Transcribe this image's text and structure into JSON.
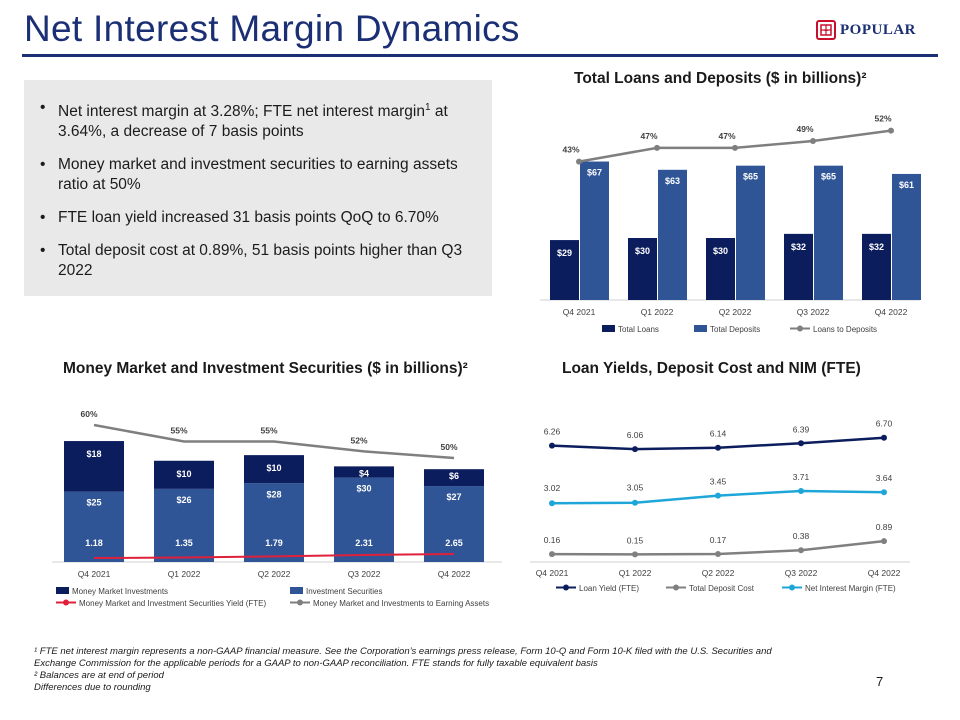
{
  "header": {
    "title": "Net Interest Margin Dynamics",
    "logo_text": "POPULAR",
    "logo_mark": "+"
  },
  "bullets": [
    {
      "pre": "Net interest margin at 3.28%; FTE net interest margin",
      "sup": "1",
      "post": " at 3.64%, a decrease of 7 basis points"
    },
    {
      "pre": "Money market and investment securities to earning assets ratio at 50%",
      "sup": "",
      "post": ""
    },
    {
      "pre": "FTE loan yield increased 31 basis points QoQ to 6.70%",
      "sup": "",
      "post": ""
    },
    {
      "pre": "Total deposit cost at 0.89%, 51 basis points higher than Q3 2022",
      "sup": "",
      "post": ""
    }
  ],
  "chart_data": [
    {
      "id": "loans_deposits",
      "type": "bar",
      "title": "Total Loans and Deposits ($ in billions)²",
      "categories": [
        "Q4 2021",
        "Q1 2022",
        "Q2 2022",
        "Q3 2022",
        "Q4 2022"
      ],
      "series": [
        {
          "name": "Total Loans",
          "values": [
            29,
            30,
            30,
            32,
            32
          ],
          "labels": [
            "$29",
            "$30",
            "$30",
            "$32",
            "$32"
          ],
          "color": "#0c1d5e"
        },
        {
          "name": "Total Deposits",
          "values": [
            67,
            63,
            65,
            65,
            61
          ],
          "labels": [
            "$67",
            "$63",
            "$65",
            "$65",
            "$61"
          ],
          "color": "#2f5597"
        }
      ],
      "line": {
        "name": "Loans to Deposits",
        "values": [
          43,
          47,
          47,
          49,
          52
        ],
        "labels": [
          "43%",
          "47%",
          "47%",
          "49%",
          "52%"
        ],
        "color": "#7f7f7f"
      },
      "ylim": [
        0,
        75
      ]
    },
    {
      "id": "mm_investments",
      "type": "bar",
      "stacked": true,
      "title": "Money Market and Investment Securities ($ in billions)²",
      "categories": [
        "Q4 2021",
        "Q1 2022",
        "Q2 2022",
        "Q3 2022",
        "Q4 2022"
      ],
      "series": [
        {
          "name": "Investment Securities",
          "values": [
            25,
            26,
            28,
            30,
            27
          ],
          "labels": [
            "$25",
            "$26",
            "$28",
            "$30",
            "$27"
          ],
          "color": "#2f5597"
        },
        {
          "name": "Money Market Investments",
          "values": [
            18,
            10,
            10,
            4,
            6
          ],
          "labels": [
            "$18",
            "$10",
            "$10",
            "$4",
            "$6"
          ],
          "color": "#0c1d5e"
        }
      ],
      "yield_line": {
        "name": "Money Market and Investment Securities Yield (FTE)",
        "values": [
          1.18,
          1.35,
          1.79,
          2.31,
          2.65
        ],
        "labels": [
          "1.18",
          "1.35",
          "1.79",
          "2.31",
          "2.65"
        ],
        "color": "#e0203a"
      },
      "ratio_line": {
        "name": "Money Market and Investments to Earning Assets",
        "values": [
          60,
          55,
          55,
          52,
          50
        ],
        "labels": [
          "60%",
          "55%",
          "55%",
          "52%",
          "50%"
        ],
        "color": "#7f7f7f"
      },
      "ylim": [
        0,
        48
      ]
    },
    {
      "id": "yields",
      "type": "line",
      "title": "Loan Yields, Deposit Cost and NIM (FTE)",
      "categories": [
        "Q4 2021",
        "Q1 2022",
        "Q2 2022",
        "Q3 2022",
        "Q4 2022"
      ],
      "series": [
        {
          "name": "Loan Yield (FTE)",
          "values": [
            6.26,
            6.06,
            6.14,
            6.39,
            6.7
          ],
          "labels": [
            "6.26",
            "6.06",
            "6.14",
            "6.39",
            "6.70"
          ],
          "color": "#0c1d5e"
        },
        {
          "name": "Total Deposit Cost",
          "values": [
            0.16,
            0.15,
            0.17,
            0.38,
            0.89
          ],
          "labels": [
            "0.16",
            "0.15",
            "0.17",
            "0.38",
            "0.89"
          ],
          "color": "#808080"
        },
        {
          "name": "Net Interest Margin (FTE)",
          "values": [
            3.02,
            3.05,
            3.45,
            3.71,
            3.64
          ],
          "labels": [
            "3.02",
            "3.05",
            "3.45",
            "3.71",
            "3.64"
          ],
          "color": "#1fa6d8"
        }
      ]
    }
  ],
  "footnotes": [
    "¹ FTE net interest margin represents a non-GAAP financial measure. See the Corporation’s earnings press release, Form 10-Q and Form 10-K filed with the U.S. Securities and Exchange Commission for the applicable periods for a GAAP to non-GAAP reconciliation. FTE stands for fully taxable equivalent basis",
    " ² Balances are at end of period",
    "Differences due to rounding"
  ],
  "page_number": "7"
}
